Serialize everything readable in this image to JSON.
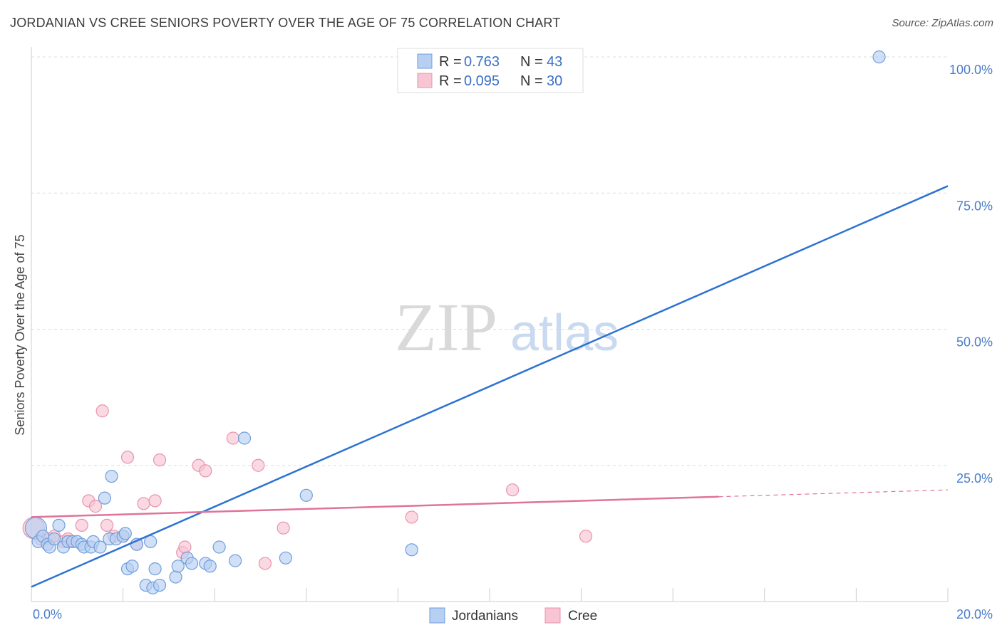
{
  "header": {
    "title": "JORDANIAN VS CREE SENIORS POVERTY OVER THE AGE OF 75 CORRELATION CHART",
    "source": "Source: ZipAtlas.com"
  },
  "watermark": {
    "zip": "ZIP",
    "atlas": "atlas"
  },
  "legend": {
    "rows": [
      {
        "r_label": "R =",
        "r_value": "0.763",
        "n_label": "N =",
        "n_value": "43"
      },
      {
        "r_label": "R =",
        "r_value": "0.095",
        "n_label": "N =",
        "n_value": "30"
      }
    ]
  },
  "bottom_legend": {
    "items": [
      "Jordanians",
      "Cree"
    ]
  },
  "colors": {
    "blue_fill": "#b7cff2",
    "blue_stroke": "#6f9edb",
    "blue_line": "#2d72d2",
    "pink_fill": "#f7c5d3",
    "pink_stroke": "#e893ae",
    "pink_line": "#e07399",
    "grid": "#dddddd"
  },
  "chart_data": {
    "type": "scatter",
    "title": "JORDANIAN VS CREE SENIORS POVERTY OVER THE AGE OF 75 CORRELATION CHART",
    "xlabel": "",
    "ylabel": "Seniors Poverty Over the Age of 75",
    "xlim": [
      0,
      20
    ],
    "ylim": [
      0,
      100
    ],
    "x_tick_labels": [
      "0.0%",
      "20.0%"
    ],
    "y_tick_values": [
      25,
      50,
      75,
      100
    ],
    "y_tick_labels": [
      "25.0%",
      "50.0%",
      "75.0%",
      "100.0%"
    ],
    "series": [
      {
        "name": "Jordanians",
        "r": 0.763,
        "n": 43,
        "trend": {
          "x": [
            0,
            20
          ],
          "y": [
            2.7,
            76.3
          ],
          "dashed_from": null
        },
        "points": [
          [
            0.1,
            13.5
          ],
          [
            0.15,
            11.0
          ],
          [
            0.25,
            12.0
          ],
          [
            0.35,
            10.5
          ],
          [
            0.4,
            10.0
          ],
          [
            0.5,
            11.5
          ],
          [
            0.6,
            14.0
          ],
          [
            0.7,
            10.0
          ],
          [
            0.8,
            11.0
          ],
          [
            0.9,
            11.0
          ],
          [
            1.0,
            11.0
          ],
          [
            1.1,
            10.5
          ],
          [
            1.15,
            10.0
          ],
          [
            1.3,
            10.0
          ],
          [
            1.35,
            11.0
          ],
          [
            1.5,
            10.0
          ],
          [
            1.6,
            19.0
          ],
          [
            1.7,
            11.5
          ],
          [
            1.75,
            23.0
          ],
          [
            1.85,
            11.5
          ],
          [
            2.0,
            12.0
          ],
          [
            2.05,
            12.5
          ],
          [
            2.1,
            6.0
          ],
          [
            2.2,
            6.5
          ],
          [
            2.3,
            10.5
          ],
          [
            2.5,
            3.0
          ],
          [
            2.6,
            11.0
          ],
          [
            2.65,
            2.5
          ],
          [
            2.7,
            6.0
          ],
          [
            2.8,
            3.0
          ],
          [
            3.15,
            4.5
          ],
          [
            3.2,
            6.5
          ],
          [
            3.4,
            8.0
          ],
          [
            3.5,
            7.0
          ],
          [
            3.8,
            7.0
          ],
          [
            3.9,
            6.5
          ],
          [
            4.1,
            10.0
          ],
          [
            4.45,
            7.5
          ],
          [
            4.65,
            30.0
          ],
          [
            5.55,
            8.0
          ],
          [
            6.0,
            19.5
          ],
          [
            8.3,
            9.5
          ],
          [
            18.5,
            100.0
          ]
        ]
      },
      {
        "name": "Cree",
        "r": 0.095,
        "n": 30,
        "trend": {
          "x": [
            0,
            20
          ],
          "y": [
            15.5,
            20.5
          ],
          "dashed_from": 15.0
        },
        "points": [
          [
            0.05,
            13.5
          ],
          [
            0.2,
            11.5
          ],
          [
            0.4,
            11.5
          ],
          [
            0.5,
            12.0
          ],
          [
            0.7,
            11.0
          ],
          [
            0.8,
            11.5
          ],
          [
            0.9,
            11.0
          ],
          [
            1.1,
            14.0
          ],
          [
            1.25,
            18.5
          ],
          [
            1.4,
            17.5
          ],
          [
            1.55,
            35.0
          ],
          [
            1.65,
            14.0
          ],
          [
            1.8,
            12.0
          ],
          [
            2.0,
            12.0
          ],
          [
            2.1,
            26.5
          ],
          [
            2.3,
            10.5
          ],
          [
            2.45,
            18.0
          ],
          [
            2.7,
            18.5
          ],
          [
            2.8,
            26.0
          ],
          [
            3.3,
            9.0
          ],
          [
            3.35,
            10.0
          ],
          [
            3.65,
            25.0
          ],
          [
            3.8,
            24.0
          ],
          [
            4.4,
            30.0
          ],
          [
            4.95,
            25.0
          ],
          [
            5.1,
            7.0
          ],
          [
            5.5,
            13.5
          ],
          [
            8.3,
            15.5
          ],
          [
            10.5,
            20.5
          ],
          [
            12.1,
            12.0
          ]
        ]
      }
    ]
  }
}
